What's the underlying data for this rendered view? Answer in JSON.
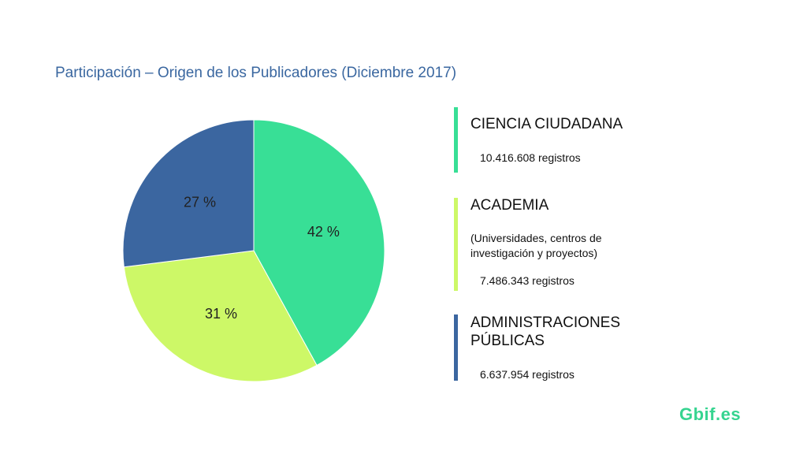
{
  "title": "Participación – Origen de los Publicadores (Diciembre 2017)",
  "chart_data": {
    "type": "pie",
    "title": "Participación – Origen de los Publicadores (Diciembre 2017)",
    "slices": [
      {
        "label": "42 %",
        "value": 42,
        "color": "#38df96"
      },
      {
        "label": "31 %",
        "value": 31,
        "color": "#cdf867"
      },
      {
        "label": "27 %",
        "value": 27,
        "color": "#3b66a0"
      }
    ]
  },
  "legend": [
    {
      "name": "CIENCIA CIUDADANA",
      "note": "",
      "records": "10.416.608 registros",
      "color": "#38df96"
    },
    {
      "name": "ACADEMIA",
      "note": "(Universidades, centros de\ninvestigación y proyectos)",
      "records": "7.486.343 registros",
      "color": "#cdf867"
    },
    {
      "name": "ADMINISTRACIONES\nPÚBLICAS",
      "note": "",
      "records": "6.637.954 registros",
      "color": "#3b66a0"
    }
  ],
  "logo": "Gbif.es"
}
